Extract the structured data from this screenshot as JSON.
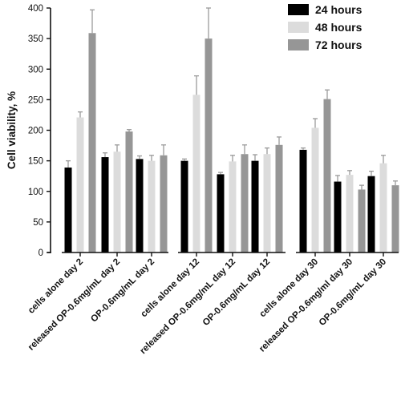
{
  "chart_data": {
    "type": "bar",
    "title": "",
    "xlabel": "",
    "ylabel": "Cell viability, %",
    "ylim": [
      0,
      400
    ],
    "yticks": [
      0,
      50,
      100,
      150,
      200,
      250,
      300,
      350,
      400
    ],
    "grid": false,
    "legend_position": "top-right",
    "categories": [
      "cells alone day 2",
      "released OP-0.6mg/mL day 2",
      "OP-0.6mg/mL day 2",
      "cells alone  day 12",
      "released OP-0.6mg/mL day 12",
      "OP-0.6mg/mL day 12",
      "cells alone day 30",
      "released OP-0.6mg/ml day 30",
      "OP-0.6mg/mL day 30"
    ],
    "series": [
      {
        "name": "24 hours",
        "color": "#000000",
        "values": [
          139,
          156,
          153,
          150,
          128,
          150,
          168,
          116,
          125
        ],
        "errors": [
          11,
          7,
          5,
          3,
          3,
          10,
          3,
          10,
          8
        ]
      },
      {
        "name": "48 hours",
        "color": "#dcdcdc",
        "values": [
          221,
          165,
          150,
          258,
          149,
          161,
          204,
          127,
          146
        ],
        "errors": [
          9,
          11,
          9,
          31,
          10,
          10,
          15,
          7,
          13
        ]
      },
      {
        "name": "72 hours",
        "color": "#969696",
        "values": [
          359,
          198,
          159,
          350,
          161,
          176,
          251,
          103,
          110
        ],
        "errors": [
          38,
          3,
          17,
          50,
          15,
          13,
          15,
          7,
          7
        ]
      }
    ]
  }
}
